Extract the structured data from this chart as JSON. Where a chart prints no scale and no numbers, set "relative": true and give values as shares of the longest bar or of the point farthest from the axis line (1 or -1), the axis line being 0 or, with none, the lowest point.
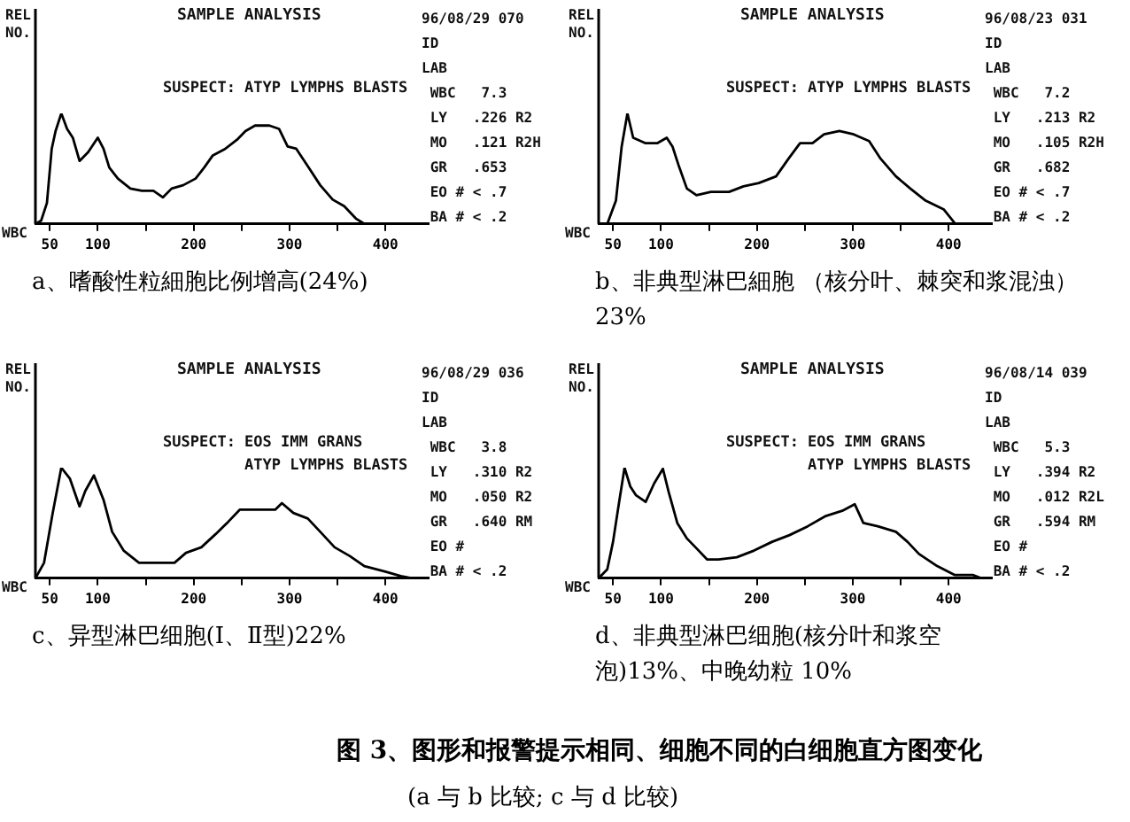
{
  "chart_data": [
    {
      "type": "line",
      "title": "SAMPLE ANALYSIS",
      "xlabel": "WBC",
      "ylabel": "REL\nNO.",
      "relative": true,
      "grid": false,
      "legend": false,
      "marker": "none",
      "line_style": "solid",
      "xlim": [
        35,
        445
      ],
      "xticks": [
        50,
        100,
        {
          "value": 150,
          "label": null
        },
        200,
        {
          "value": 250,
          "label": null
        },
        300,
        {
          "value": 350,
          "label": null
        },
        400
      ],
      "x": [
        35,
        41,
        47,
        52,
        56,
        62,
        68,
        74,
        81,
        90,
        100,
        106,
        112,
        121,
        134,
        146,
        158,
        168,
        177,
        189,
        202,
        211,
        220,
        233,
        245,
        254,
        264,
        279,
        289,
        298,
        307,
        320,
        332,
        345,
        357,
        369,
        378,
        397
      ],
      "series": [
        {
          "color": "#000000",
          "values": [
            0,
            0.03,
            0.19,
            0.68,
            0.84,
            1,
            0.86,
            0.78,
            0.57,
            0.65,
            0.78,
            0.68,
            0.51,
            0.41,
            0.32,
            0.3,
            0.3,
            0.24,
            0.32,
            0.35,
            0.41,
            0.51,
            0.62,
            0.68,
            0.76,
            0.84,
            0.89,
            0.89,
            0.86,
            0.7,
            0.68,
            0.51,
            0.35,
            0.22,
            0.16,
            0.05,
            0,
            0
          ]
        }
      ],
      "annotations": [
        "SUSPECT: ATYP LYMPHS BLASTS",
        "96/08/29 070\nID\nLAB\n WBC   7.3\n LY   .226 R2\n MO   .121 R2H\n GR   .653\n EO # < .7\n BA # < .2",
        "a、嗜酸性粒細胞比例增高(24%)"
      ]
    },
    {
      "type": "line",
      "title": "SAMPLE ANALYSIS",
      "xlabel": "WBC",
      "ylabel": "REL\nNO.",
      "relative": true,
      "grid": false,
      "legend": false,
      "marker": "none",
      "line_style": "solid",
      "xlim": [
        35,
        445
      ],
      "xticks": [
        50,
        100,
        {
          "value": 150,
          "label": null
        },
        200,
        {
          "value": 250,
          "label": null
        },
        300,
        {
          "value": 350,
          "label": null
        },
        400
      ],
      "x": [
        35,
        44,
        53,
        59,
        65,
        71,
        84,
        96,
        106,
        112,
        118,
        127,
        137,
        152,
        171,
        186,
        202,
        220,
        233,
        245,
        258,
        270,
        286,
        301,
        317,
        329,
        345,
        360,
        376,
        395,
        407,
        444
      ],
      "series": [
        {
          "color": "#000000",
          "values": [
            0,
            0,
            0.21,
            0.7,
            1,
            0.78,
            0.73,
            0.73,
            0.78,
            0.7,
            0.54,
            0.32,
            0.26,
            0.29,
            0.29,
            0.34,
            0.37,
            0.43,
            0.59,
            0.73,
            0.73,
            0.81,
            0.84,
            0.81,
            0.75,
            0.59,
            0.43,
            0.32,
            0.21,
            0.13,
            0,
            0
          ]
        }
      ],
      "annotations": [
        "SUSPECT: ATYP LYMPHS BLASTS",
        "96/08/23 031\nID\nLAB\n WBC   7.2\n LY   .213 R2\n MO   .105 R2H\n GR   .682\n EO # < .7\n BA # < .2",
        "b、非典型淋巴細胞 （核分叶、棘突和浆混浊）23%"
      ]
    },
    {
      "type": "line",
      "title": "SAMPLE ANALYSIS",
      "xlabel": "WBC",
      "ylabel": "REL\nNO.",
      "relative": true,
      "grid": false,
      "legend": false,
      "marker": "none",
      "line_style": "solid",
      "xlim": [
        35,
        445
      ],
      "xticks": [
        50,
        100,
        {
          "value": 150,
          "label": null
        },
        200,
        {
          "value": 250,
          "label": null
        },
        300,
        {
          "value": 350,
          "label": null
        },
        400
      ],
      "x": [
        35,
        44,
        53,
        62,
        71,
        81,
        87,
        96,
        106,
        115,
        127,
        143,
        162,
        180,
        192,
        208,
        223,
        236,
        248,
        267,
        285,
        292,
        304,
        319,
        332,
        347,
        363,
        378,
        400,
        416,
        428
      ],
      "series": [
        {
          "color": "#000000",
          "values": [
            0,
            0.14,
            0.59,
            1,
            0.9,
            0.65,
            0.79,
            0.93,
            0.71,
            0.42,
            0.25,
            0.14,
            0.14,
            0.14,
            0.23,
            0.28,
            0.4,
            0.51,
            0.62,
            0.62,
            0.62,
            0.68,
            0.59,
            0.54,
            0.42,
            0.28,
            0.2,
            0.11,
            0.06,
            0.02,
            0
          ]
        }
      ],
      "annotations": [
        "SUSPECT: EOS IMM GRANS\n         ATYP LYMPHS BLASTS",
        "96/08/29 036\nID\nLAB\n WBC   3.8\n LY   .310 R2\n MO   .050 R2\n GR   .640 RM\n EO #\n BA # < .2",
        "c、异型淋巴细胞(Ⅰ、Ⅱ型)22%"
      ]
    },
    {
      "type": "line",
      "title": "SAMPLE ANALYSIS",
      "xlabel": "WBC",
      "ylabel": "REL\nNO.",
      "relative": true,
      "grid": false,
      "legend": false,
      "marker": "none",
      "line_style": "solid",
      "xlim": [
        35,
        445
      ],
      "xticks": [
        50,
        100,
        {
          "value": 150,
          "label": null
        },
        200,
        {
          "value": 250,
          "label": null
        },
        300,
        {
          "value": 350,
          "label": null
        },
        400
      ],
      "x": [
        35,
        44,
        50,
        56,
        62,
        68,
        74,
        84,
        93,
        102,
        108,
        117,
        127,
        136,
        148,
        160,
        179,
        197,
        216,
        234,
        253,
        271,
        289,
        302,
        311,
        326,
        345,
        357,
        369,
        388,
        406,
        425,
        434
      ],
      "series": [
        {
          "color": "#000000",
          "values": [
            0,
            0.08,
            0.33,
            0.67,
            1,
            0.83,
            0.75,
            0.69,
            0.86,
            0.99,
            0.78,
            0.5,
            0.36,
            0.28,
            0.17,
            0.17,
            0.19,
            0.25,
            0.33,
            0.39,
            0.47,
            0.56,
            0.61,
            0.67,
            0.5,
            0.47,
            0.42,
            0.33,
            0.22,
            0.11,
            0.03,
            0.03,
            0
          ]
        }
      ],
      "annotations": [
        "SUSPECT: EOS IMM GRANS\n         ATYP LYMPHS BLASTS",
        "96/08/14 039\nID\nLAB\n WBC   5.3\n LY   .394 R2\n MO   .012 R2L\n GR   .594 RM\n EO #\n BA # < .2",
        "d、非典型淋巴细胞(核分叶和浆空泡)13%、中晚幼粒 10%",
        "图 3、图形和报警提示相同、细胞不同的白细胞直方图变化",
        "(a 与 b 比较; c 与 d 比较)"
      ]
    }
  ]
}
